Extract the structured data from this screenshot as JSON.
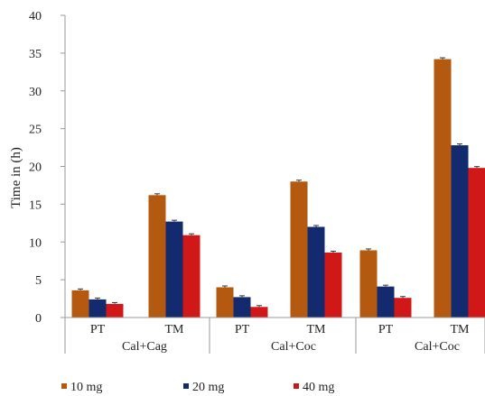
{
  "chart_data": {
    "type": "bar",
    "ylabel": "Time in (h)",
    "ylim": [
      0,
      40
    ],
    "yticks": [
      0,
      5,
      10,
      15,
      20,
      25,
      30,
      35,
      40
    ],
    "grid": false,
    "legend_position": "bottom",
    "categories": [
      "PT",
      "TM",
      "PT",
      "TM",
      "PT",
      "TM"
    ],
    "groups": [
      {
        "label": "Cal+Cag",
        "categories": [
          "PT",
          "TM"
        ]
      },
      {
        "label": "Cal+Coc",
        "categories": [
          "PT",
          "TM"
        ]
      },
      {
        "label": "Cal+Coc",
        "categories": [
          "PT",
          "TM"
        ]
      }
    ],
    "series": [
      {
        "name": "10 mg",
        "color": "#b35a10",
        "values": [
          3.6,
          16.2,
          4.0,
          18.0,
          8.9,
          34.2
        ]
      },
      {
        "name": "20 mg",
        "color": "#142a6e",
        "values": [
          2.4,
          12.7,
          2.7,
          12.0,
          4.1,
          22.8
        ]
      },
      {
        "name": "40 mg",
        "color": "#d01818",
        "values": [
          1.8,
          10.9,
          1.4,
          8.6,
          2.6,
          19.8
        ]
      }
    ]
  }
}
